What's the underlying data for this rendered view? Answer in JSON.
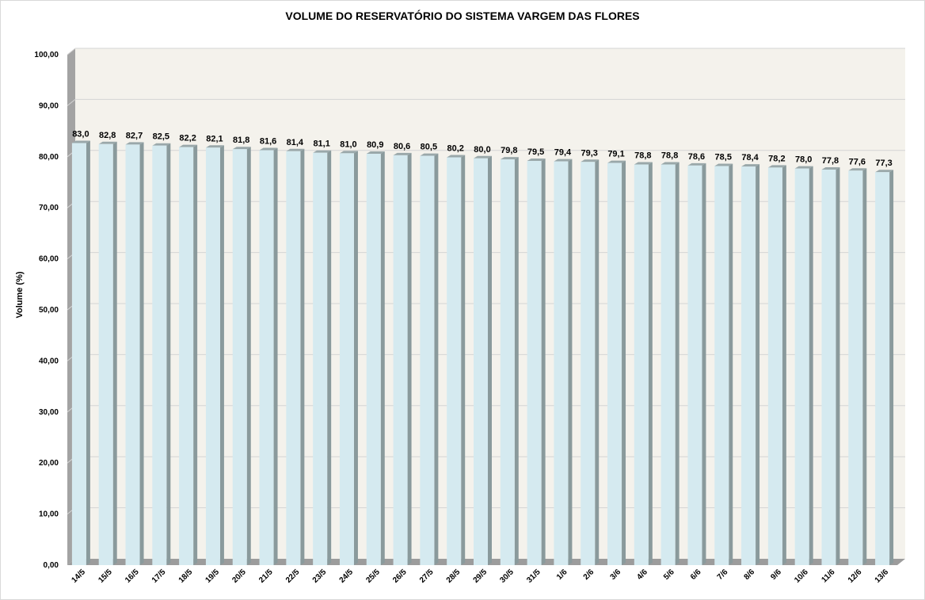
{
  "chart_data": {
    "type": "bar",
    "title": "VOLUME DO RESERVATÓRIO DO SISTEMA VARGEM DAS FLORES",
    "xlabel": "",
    "ylabel": "Volume (%)",
    "ylim": [
      0,
      100
    ],
    "grid": true,
    "legend": "none",
    "yticks": [
      "0,00",
      "10,00",
      "20,00",
      "30,00",
      "40,00",
      "50,00",
      "60,00",
      "70,00",
      "80,00",
      "90,00",
      "100,00"
    ],
    "categories": [
      "14/5",
      "15/5",
      "16/5",
      "17/5",
      "18/5",
      "19/5",
      "20/5",
      "21/5",
      "22/5",
      "23/5",
      "24/5",
      "25/5",
      "26/5",
      "27/5",
      "28/5",
      "29/5",
      "30/5",
      "31/5",
      "1/6",
      "2/6",
      "3/6",
      "4/6",
      "5/6",
      "6/6",
      "7/6",
      "8/6",
      "9/6",
      "10/6",
      "11/6",
      "12/6",
      "13/6"
    ],
    "values": [
      83.0,
      82.8,
      82.7,
      82.5,
      82.2,
      82.1,
      81.8,
      81.6,
      81.4,
      81.1,
      81.0,
      80.9,
      80.6,
      80.5,
      80.2,
      80.0,
      79.8,
      79.5,
      79.4,
      79.3,
      79.1,
      78.8,
      78.8,
      78.6,
      78.5,
      78.4,
      78.2,
      78.0,
      77.8,
      77.6,
      77.3
    ],
    "value_labels": [
      "83,0",
      "82,8",
      "82,7",
      "82,5",
      "82,2",
      "82,1",
      "81,8",
      "81,6",
      "81,4",
      "81,1",
      "81,0",
      "80,9",
      "80,6",
      "80,5",
      "80,2",
      "80,0",
      "79,8",
      "79,5",
      "79,4",
      "79,3",
      "79,1",
      "78,8",
      "78,8",
      "78,6",
      "78,5",
      "78,4",
      "78,2",
      "78,0",
      "77,8",
      "77,6",
      "77,3"
    ],
    "colors": {
      "bar_front": "#d5eaf0",
      "bar_side": "#8a9a9c",
      "bar_top": "#9aa8aa",
      "plot_back": "#f4f2ec",
      "plot_wall": "#a3a3a3",
      "plot_floor": "#9c9c9c",
      "grid": "#d4d4d4"
    }
  }
}
